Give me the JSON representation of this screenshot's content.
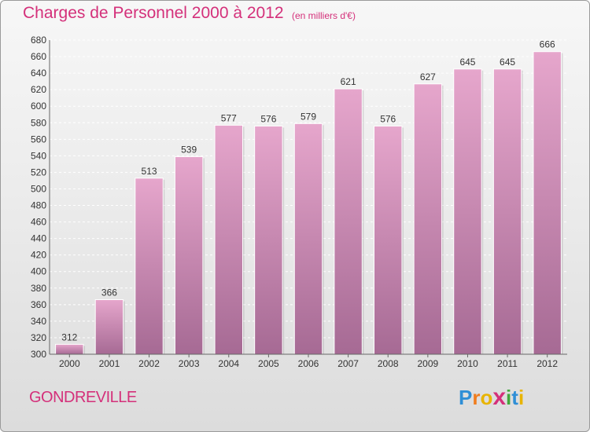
{
  "header": {
    "title": "Charges de Personnel 2000 à 2012",
    "subtitle": "(en milliers d'€)"
  },
  "footer": {
    "place": "GONDREVILLE",
    "logo_letters": [
      "P",
      "r",
      "o",
      "x",
      "i",
      "t",
      "i"
    ],
    "logo_colors": [
      "#2f8fd6",
      "#f07d1e",
      "#e8b400",
      "#d4307a",
      "#42a83c",
      "#2f8fd6",
      "#e8b400"
    ]
  },
  "colors": {
    "bar_top": "#e6a6cc",
    "bar_bottom": "#a66a94",
    "title": "#d4307a"
  },
  "chart_data": {
    "type": "bar",
    "categories": [
      "2000",
      "2001",
      "2002",
      "2003",
      "2004",
      "2005",
      "2006",
      "2007",
      "2008",
      "2009",
      "2010",
      "2011",
      "2012"
    ],
    "values": [
      312,
      366,
      513,
      539,
      577,
      576,
      579,
      621,
      576,
      627,
      645,
      645,
      666
    ],
    "ylim": [
      300,
      680
    ],
    "yticks": [
      300,
      320,
      340,
      360,
      380,
      400,
      420,
      440,
      460,
      480,
      500,
      520,
      540,
      560,
      580,
      600,
      620,
      640,
      660,
      680
    ],
    "grid": true,
    "data_labels": true
  }
}
